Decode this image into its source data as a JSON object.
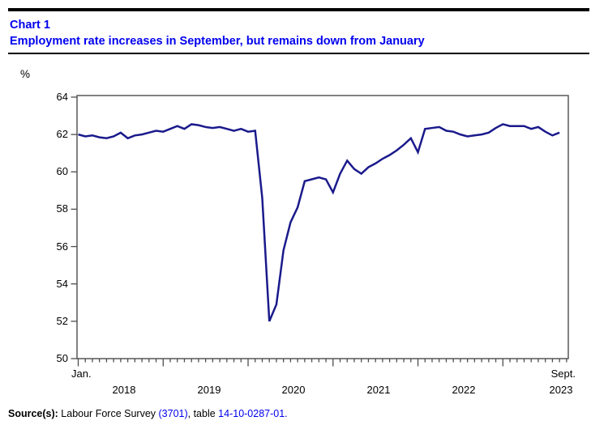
{
  "header": {
    "chart_label": "Chart 1",
    "title": "Employment rate increases in September, but remains down from January"
  },
  "colors": {
    "title_blue": "#0000ee",
    "line_navy": "#1a1a8c",
    "axis_gray": "#4d4d4d",
    "link_blue": "#0000ee"
  },
  "chart_data": {
    "type": "line",
    "title": "Employment rate increases in September, but remains down from January",
    "ylabel": "%",
    "ylim": [
      50,
      64
    ],
    "y_tick_step": 2,
    "grid": "off",
    "legend": "none",
    "x_range": {
      "start": "Jan. 2018",
      "end": "Sept. 2023",
      "interval": "monthly"
    },
    "x_start_label": "Jan.",
    "x_end_label": "Sept.",
    "x_year_labels": [
      "2018",
      "2019",
      "2020",
      "2021",
      "2022",
      "2023"
    ],
    "y_tick_labels": [
      "64",
      "62",
      "60",
      "58",
      "56",
      "54",
      "52",
      "50"
    ],
    "series_name": "Employment rate (%)",
    "values": [
      62.0,
      61.9,
      61.95,
      61.85,
      61.8,
      61.9,
      62.1,
      61.8,
      61.95,
      62.0,
      62.1,
      62.2,
      62.15,
      62.3,
      62.45,
      62.3,
      62.55,
      62.5,
      62.4,
      62.35,
      62.4,
      62.3,
      62.2,
      62.3,
      62.15,
      62.2,
      58.6,
      52.0,
      52.9,
      55.8,
      57.3,
      58.1,
      59.5,
      59.6,
      59.7,
      59.6,
      58.9,
      59.9,
      60.6,
      60.15,
      59.9,
      60.25,
      60.45,
      60.7,
      60.9,
      61.15,
      61.45,
      61.8,
      61.05,
      62.3,
      62.35,
      62.4,
      62.2,
      62.15,
      62.0,
      61.9,
      61.95,
      62.0,
      62.1,
      62.35,
      62.55,
      62.45,
      62.45,
      62.45,
      62.3,
      62.4,
      62.15,
      61.95,
      62.1
    ]
  },
  "footer": {
    "source_prefix": "Source(s):",
    "source_text": " Labour Force Survey ",
    "survey_link": "(3701)",
    "separator": ", table ",
    "table_link": "14-10-0287-01."
  }
}
